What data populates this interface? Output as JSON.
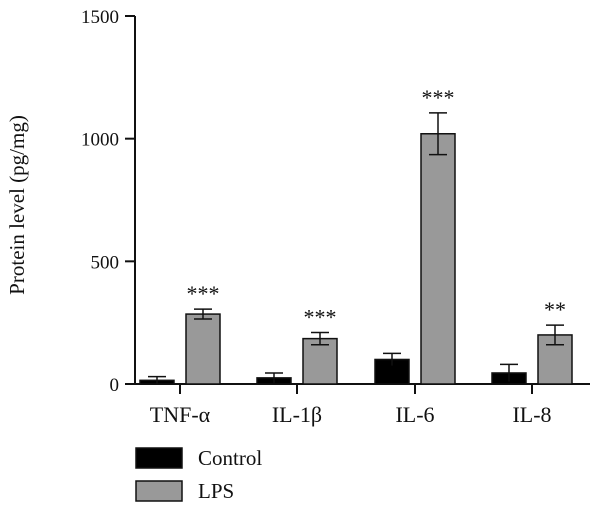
{
  "chart_data": {
    "type": "bar",
    "ylabel": "Protein level (pg/mg)",
    "ylim": [
      0,
      1500
    ],
    "yticks": [
      0,
      500,
      1000,
      1500
    ],
    "categories": [
      "TNF-α",
      "IL-1β",
      "IL-6",
      "IL-8"
    ],
    "series": [
      {
        "name": "Control",
        "color": "#000000",
        "values": [
          15,
          25,
          100,
          45
        ],
        "errors": [
          15,
          20,
          25,
          35
        ]
      },
      {
        "name": "LPS",
        "color": "#999999",
        "values": [
          285,
          185,
          1020,
          200
        ],
        "errors": [
          20,
          25,
          85,
          40
        ]
      }
    ],
    "annotations": [
      "***",
      "***",
      "***",
      "**"
    ],
    "legend_position": "bottom-left"
  }
}
